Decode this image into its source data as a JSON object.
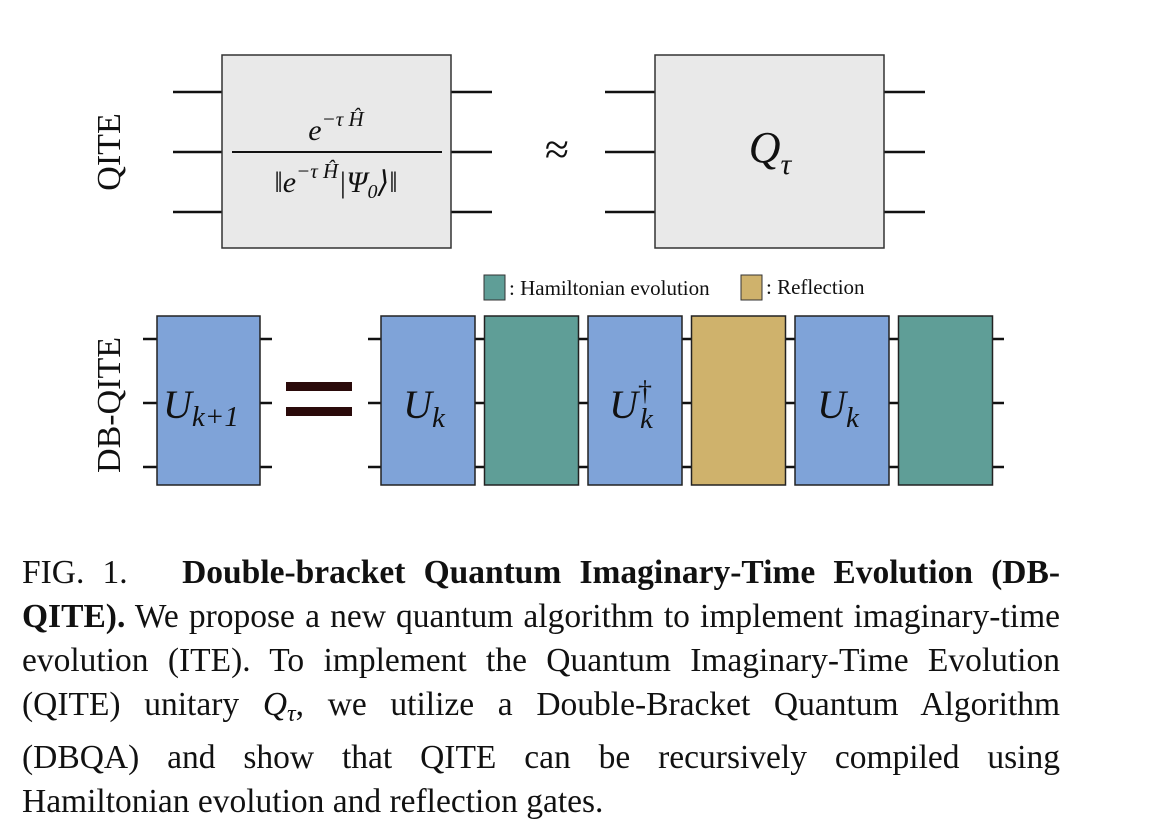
{
  "figure": {
    "row_labels": {
      "top": "QITE",
      "bottom": "DB-QITE"
    },
    "qite_box": {
      "numerator_base": "e",
      "numerator_exp": "−τ Ĥ",
      "denominator_open": "‖e",
      "denominator_exp": "−τ Ĥ",
      "denominator_rest": "|Ψ",
      "denominator_sub": "0",
      "denominator_close": "⟩‖"
    },
    "approx_symbol": "≈",
    "q_tau": {
      "base": "Q",
      "sub": "τ"
    },
    "legend": [
      {
        "label": ": Hamiltonian evolution",
        "color": "#5f9e97"
      },
      {
        "label": ": Reflection",
        "color": "#cfb26c"
      }
    ],
    "equals_symbol": "=",
    "lhs_gate": {
      "base": "U",
      "sub": "k+1",
      "color": "#7fa3d8"
    },
    "rhs_gates": [
      {
        "kind": "unitary",
        "base": "U",
        "sub": "k",
        "sup": "",
        "color": "#7fa3d8"
      },
      {
        "kind": "hamiltonian",
        "base": "",
        "sub": "",
        "sup": "",
        "color": "#5f9e97"
      },
      {
        "kind": "unitary",
        "base": "U",
        "sub": "k",
        "sup": "†",
        "color": "#7fa3d8"
      },
      {
        "kind": "reflection",
        "base": "",
        "sub": "",
        "sup": "",
        "color": "#cfb26c"
      },
      {
        "kind": "unitary",
        "base": "U",
        "sub": "k",
        "sup": "",
        "color": "#7fa3d8"
      },
      {
        "kind": "hamiltonian",
        "base": "",
        "sub": "",
        "sup": "",
        "color": "#5f9e97"
      }
    ]
  },
  "caption": {
    "fig_label": "FIG. 1.",
    "title": "Double-bracket Quantum Imaginary-Time Evolution (DB-QITE).",
    "body_1": "We propose a new quantum algorithm to implement imaginary-time evolution (ITE). To implement the Quantum Imaginary-Time Evolution (QITE) unitary",
    "math_base": "Q",
    "math_sub": "τ",
    "body_2": ", we utilize a Double-Bracket Quantum Algorithm (DBQA) and show that QITE can be recursively compiled using Hamiltonian evolution and reflection gates."
  }
}
